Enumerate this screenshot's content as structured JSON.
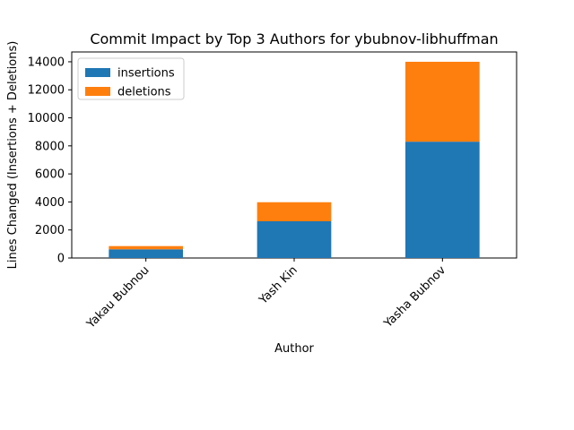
{
  "chart_data": {
    "type": "bar",
    "stacked": true,
    "title": "Commit Impact by Top 3 Authors for ybubnov-libhuffman",
    "xlabel": "Author",
    "ylabel": "Lines Changed (Insertions + Deletions)",
    "categories": [
      "Yakau Bubnou",
      "Yash Kin",
      "Yasha Bubnov"
    ],
    "series": [
      {
        "name": "insertions",
        "values": [
          620,
          2620,
          8300
        ],
        "color": "#1f77b4"
      },
      {
        "name": "deletions",
        "values": [
          230,
          1360,
          5700
        ],
        "color": "#ff7f0e"
      }
    ],
    "ylim": [
      0,
      14700
    ],
    "yticks": [
      0,
      2000,
      4000,
      6000,
      8000,
      10000,
      12000,
      14000
    ],
    "grid": false,
    "legend_position": "top-left"
  }
}
